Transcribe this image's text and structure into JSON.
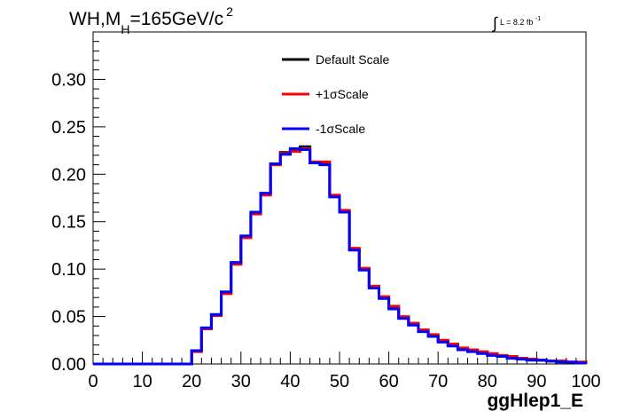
{
  "title": {
    "main": "WH,M",
    "subscript": "H",
    "value": "=165GeV/c",
    "superscript": "2"
  },
  "lumi": {
    "symbol": "∫",
    "text": "L = 8.2 fb",
    "exponent": "-1"
  },
  "legend": [
    {
      "label": "Default Scale",
      "color": "#000000"
    },
    {
      "label": "+1σScale",
      "color": "#ff0000"
    },
    {
      "label": "-1σScale",
      "color": "#0000ff"
    }
  ],
  "chart_data": {
    "type": "line",
    "xlabel": "ggHlep1_E",
    "ylabel": "",
    "xlim": [
      0,
      100
    ],
    "ylim": [
      0,
      0.35
    ],
    "x_ticks": [
      "0",
      "10",
      "20",
      "30",
      "40",
      "50",
      "60",
      "70",
      "80",
      "90",
      "100"
    ],
    "y_ticks": [
      "0.00",
      "0.05",
      "0.10",
      "0.15",
      "0.20",
      "0.25",
      "0.30"
    ],
    "bin_edges": [
      0,
      2,
      4,
      6,
      8,
      10,
      12,
      14,
      16,
      18,
      20,
      22,
      24,
      26,
      28,
      30,
      32,
      34,
      36,
      38,
      40,
      42,
      44,
      46,
      48,
      50,
      52,
      54,
      56,
      58,
      60,
      62,
      64,
      66,
      68,
      70,
      72,
      74,
      76,
      78,
      80,
      82,
      84,
      86,
      88,
      90,
      92,
      94,
      96,
      98,
      100
    ],
    "series": [
      {
        "name": "Default Scale",
        "color": "#000000",
        "values": [
          0,
          0,
          0,
          0,
          0,
          0,
          0,
          0,
          0,
          0,
          0.014,
          0.038,
          0.052,
          0.075,
          0.106,
          0.134,
          0.159,
          0.179,
          0.211,
          0.223,
          0.226,
          0.229,
          0.212,
          0.212,
          0.177,
          0.161,
          0.121,
          0.1,
          0.081,
          0.07,
          0.06,
          0.049,
          0.042,
          0.035,
          0.03,
          0.024,
          0.02,
          0.016,
          0.014,
          0.012,
          0.01,
          0.008,
          0.007,
          0.006,
          0.005,
          0.004,
          0.003,
          0.003,
          0.002,
          0.002
        ]
      },
      {
        "name": "+1σScale",
        "color": "#ff0000",
        "values": [
          0,
          0,
          0,
          0,
          0,
          0,
          0,
          0,
          0,
          0,
          0.013,
          0.037,
          0.051,
          0.074,
          0.105,
          0.133,
          0.158,
          0.178,
          0.21,
          0.222,
          0.224,
          0.227,
          0.213,
          0.213,
          0.178,
          0.162,
          0.122,
          0.101,
          0.082,
          0.071,
          0.061,
          0.05,
          0.043,
          0.036,
          0.031,
          0.025,
          0.021,
          0.017,
          0.015,
          0.013,
          0.011,
          0.009,
          0.008,
          0.006,
          0.005,
          0.004,
          0.003,
          0.003,
          0.002,
          0.002
        ]
      },
      {
        "name": "-1σScale",
        "color": "#0000ff",
        "values": [
          0,
          0,
          0,
          0,
          0,
          0,
          0,
          0,
          0,
          0,
          0.014,
          0.038,
          0.052,
          0.076,
          0.107,
          0.135,
          0.16,
          0.18,
          0.211,
          0.221,
          0.227,
          0.226,
          0.212,
          0.21,
          0.176,
          0.16,
          0.12,
          0.099,
          0.08,
          0.069,
          0.058,
          0.048,
          0.041,
          0.034,
          0.029,
          0.023,
          0.019,
          0.015,
          0.013,
          0.011,
          0.009,
          0.008,
          0.006,
          0.005,
          0.004,
          0.004,
          0.003,
          0.002,
          0.002,
          0.001
        ]
      }
    ]
  }
}
